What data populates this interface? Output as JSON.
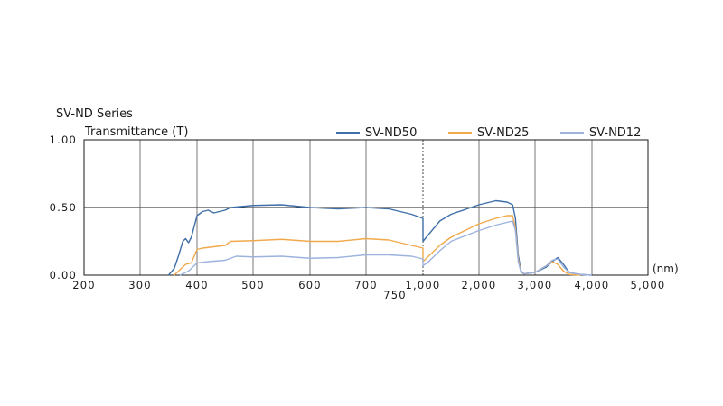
{
  "chart_data": {
    "type": "line",
    "title": "SV-ND Series",
    "ylabel": "Transmittance (T)",
    "xunit": "(nm)",
    "x_ticks": [
      200,
      300,
      400,
      500,
      600,
      700,
      800,
      1000,
      2000,
      3000,
      4000,
      5000
    ],
    "x_tick_labels": [
      "200",
      "300",
      "400",
      "500",
      "600",
      "700",
      "",
      "1,000",
      "2,000",
      "3,000",
      "4,000",
      "5,000"
    ],
    "break_label": "750",
    "y_ticks": [
      0,
      0.5,
      1.0
    ],
    "y_tick_labels": [
      "0.00",
      "0.50",
      "1.00"
    ],
    "ylim": [
      0,
      1.0
    ],
    "xlim": [
      200,
      5000
    ],
    "x_scale": "piecewise (linear 200–800 nm, then equal-width segments per 1,000 nm)",
    "grid": true,
    "legend_position": "top-right",
    "series": [
      {
        "name": "SV-ND50",
        "color": "#3f6fa8",
        "points": [
          [
            350,
            0.0
          ],
          [
            360,
            0.05
          ],
          [
            368,
            0.15
          ],
          [
            375,
            0.25
          ],
          [
            380,
            0.27
          ],
          [
            385,
            0.24
          ],
          [
            390,
            0.28
          ],
          [
            400,
            0.44
          ],
          [
            410,
            0.47
          ],
          [
            420,
            0.48
          ],
          [
            430,
            0.46
          ],
          [
            440,
            0.47
          ],
          [
            450,
            0.48
          ],
          [
            460,
            0.5
          ],
          [
            500,
            0.515
          ],
          [
            550,
            0.52
          ],
          [
            600,
            0.5
          ],
          [
            650,
            0.49
          ],
          [
            700,
            0.5
          ],
          [
            740,
            0.49
          ],
          [
            780,
            0.45
          ],
          [
            800,
            0.42
          ],
          [
            900,
            0.28
          ],
          [
            1000,
            0.25
          ],
          [
            1100,
            0.3
          ],
          [
            1300,
            0.4
          ],
          [
            1500,
            0.45
          ],
          [
            2000,
            0.52
          ],
          [
            2300,
            0.55
          ],
          [
            2500,
            0.54
          ],
          [
            2600,
            0.52
          ],
          [
            2650,
            0.42
          ],
          [
            2700,
            0.15
          ],
          [
            2750,
            0.03
          ],
          [
            2800,
            0.01
          ],
          [
            3000,
            0.02
          ],
          [
            3200,
            0.06
          ],
          [
            3300,
            0.1
          ],
          [
            3400,
            0.13
          ],
          [
            3500,
            0.08
          ],
          [
            3600,
            0.02
          ],
          [
            3800,
            0.005
          ],
          [
            4000,
            0.0
          ]
        ]
      },
      {
        "name": "SV-ND25",
        "color": "#f0a94c",
        "points": [
          [
            360,
            0.0
          ],
          [
            370,
            0.04
          ],
          [
            380,
            0.08
          ],
          [
            390,
            0.09
          ],
          [
            400,
            0.19
          ],
          [
            410,
            0.2
          ],
          [
            430,
            0.21
          ],
          [
            450,
            0.22
          ],
          [
            460,
            0.25
          ],
          [
            500,
            0.255
          ],
          [
            550,
            0.265
          ],
          [
            600,
            0.25
          ],
          [
            650,
            0.25
          ],
          [
            700,
            0.27
          ],
          [
            740,
            0.26
          ],
          [
            780,
            0.22
          ],
          [
            800,
            0.2
          ],
          [
            900,
            0.12
          ],
          [
            1000,
            0.1
          ],
          [
            1100,
            0.14
          ],
          [
            1300,
            0.22
          ],
          [
            1500,
            0.28
          ],
          [
            2000,
            0.38
          ],
          [
            2300,
            0.42
          ],
          [
            2500,
            0.44
          ],
          [
            2600,
            0.44
          ],
          [
            2650,
            0.35
          ],
          [
            2700,
            0.12
          ],
          [
            2750,
            0.02
          ],
          [
            2800,
            0.01
          ],
          [
            3000,
            0.02
          ],
          [
            3200,
            0.07
          ],
          [
            3300,
            0.1
          ],
          [
            3400,
            0.08
          ],
          [
            3500,
            0.03
          ],
          [
            3600,
            0.005
          ],
          [
            3800,
            0.0
          ]
        ]
      },
      {
        "name": "SV-ND12",
        "color": "#9db3de",
        "points": [
          [
            370,
            0.0
          ],
          [
            385,
            0.03
          ],
          [
            400,
            0.09
          ],
          [
            420,
            0.1
          ],
          [
            450,
            0.11
          ],
          [
            470,
            0.14
          ],
          [
            500,
            0.135
          ],
          [
            550,
            0.14
          ],
          [
            600,
            0.125
          ],
          [
            650,
            0.13
          ],
          [
            700,
            0.15
          ],
          [
            740,
            0.15
          ],
          [
            780,
            0.14
          ],
          [
            800,
            0.12
          ],
          [
            900,
            0.08
          ],
          [
            1000,
            0.07
          ],
          [
            1100,
            0.1
          ],
          [
            1300,
            0.18
          ],
          [
            1500,
            0.25
          ],
          [
            2000,
            0.33
          ],
          [
            2300,
            0.37
          ],
          [
            2500,
            0.39
          ],
          [
            2600,
            0.4
          ],
          [
            2650,
            0.33
          ],
          [
            2700,
            0.1
          ],
          [
            2750,
            0.02
          ],
          [
            2800,
            0.01
          ],
          [
            3000,
            0.02
          ],
          [
            3200,
            0.07
          ],
          [
            3300,
            0.11
          ],
          [
            3400,
            0.12
          ],
          [
            3500,
            0.06
          ],
          [
            3600,
            0.02
          ],
          [
            3800,
            0.005
          ],
          [
            4000,
            0.0
          ]
        ]
      }
    ]
  }
}
